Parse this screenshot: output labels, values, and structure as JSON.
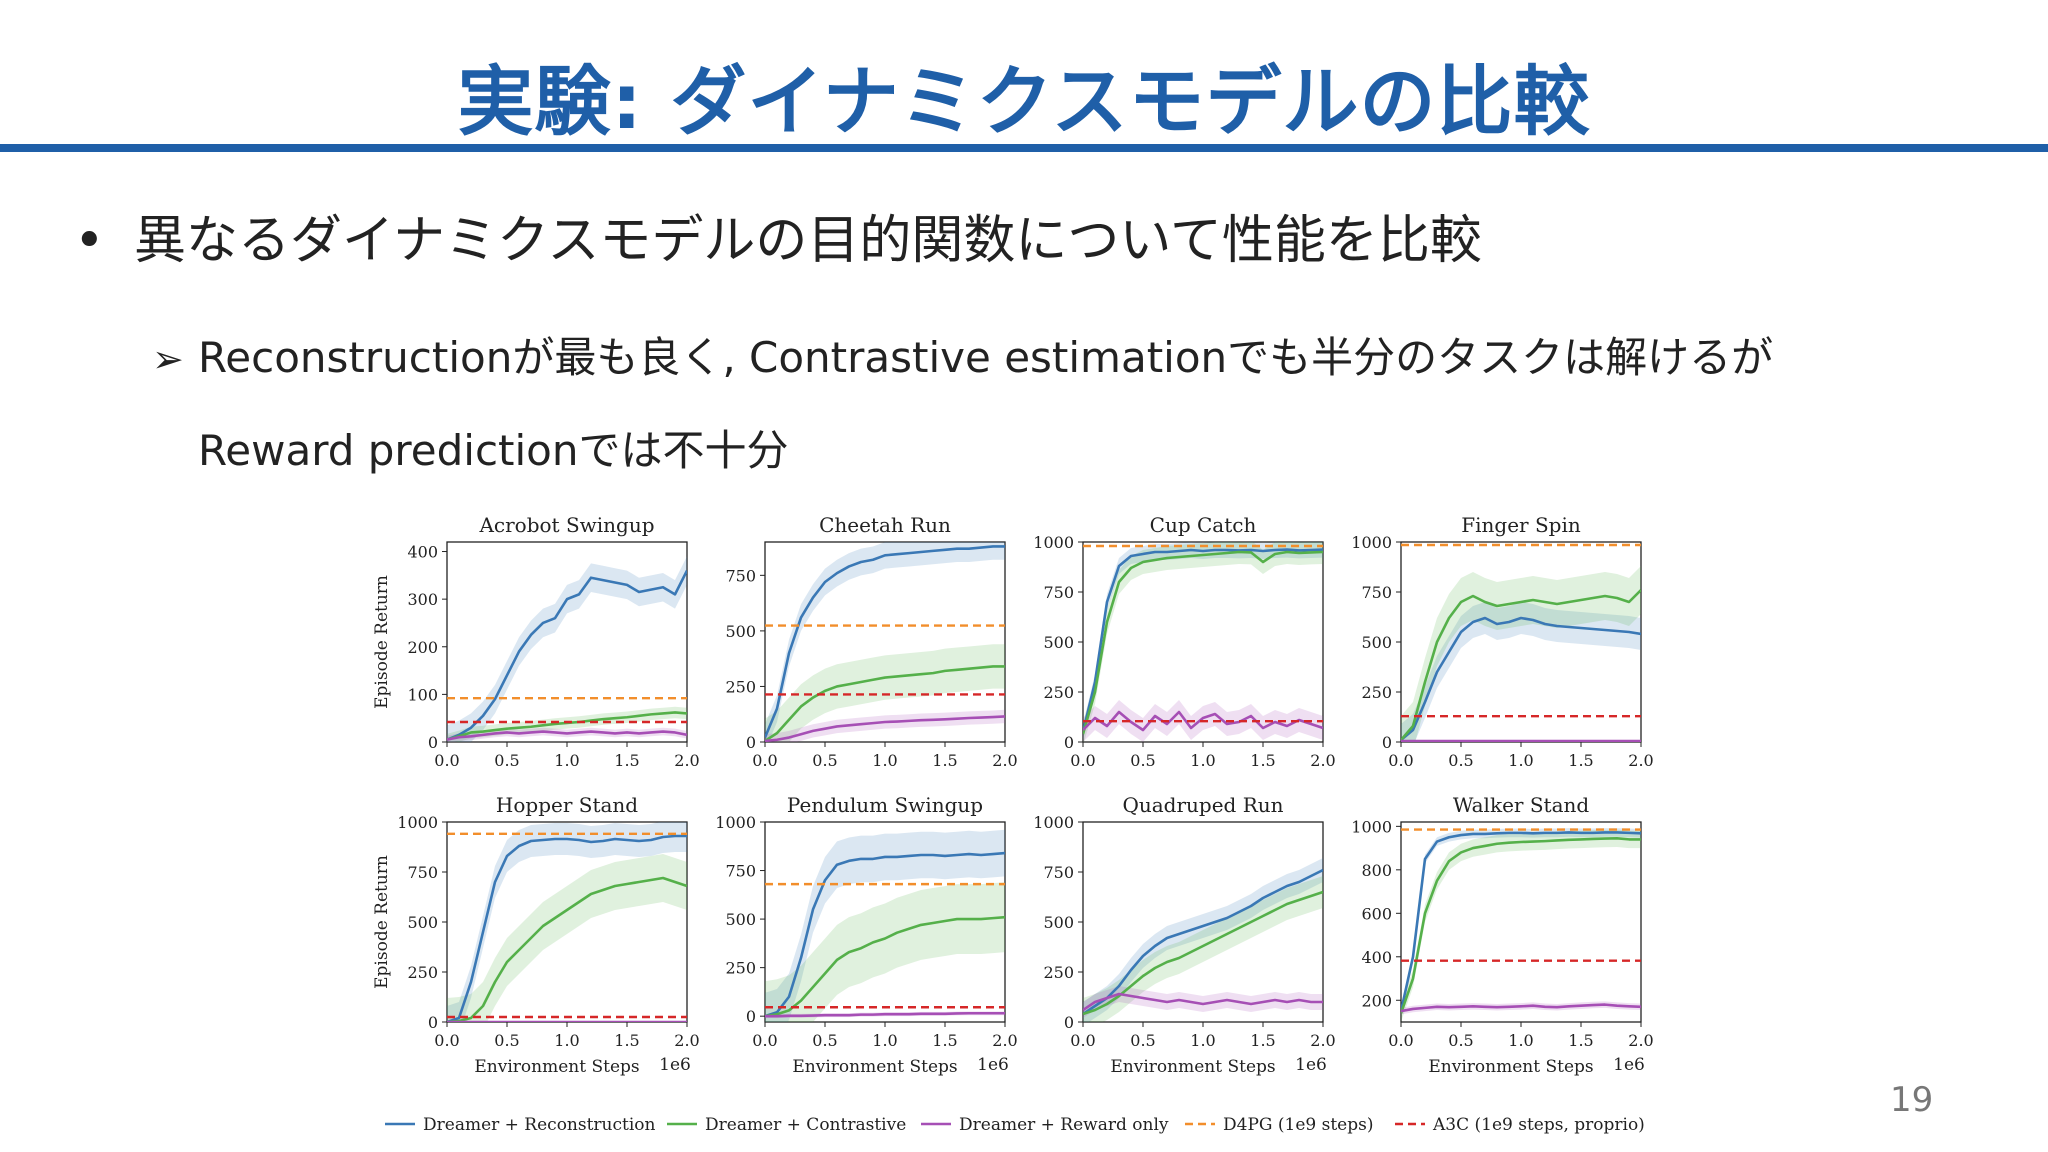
{
  "slide": {
    "title": "実験: ダイナミクスモデルの比較",
    "bullet": "•",
    "bullet1": "異なるダイナミクスモデルの目的関数について性能を比較",
    "arrow": "➢",
    "bullet2_line1": "Reconstructionが最も良く, Contrastive estimationでも半分のタスクは解けるが",
    "bullet2_line2": "Reward predictionでは不十分",
    "page_number": "19"
  },
  "colors": {
    "accent": "#1f5fa8",
    "reconstruction": "#3a78b5",
    "contrastive": "#55b04a",
    "reward": "#a64fb5",
    "d4pg": "#f28e2b",
    "a3c": "#d62728"
  },
  "chart_data": {
    "type": "line",
    "xlabel": "Environment Steps",
    "ylabel": "Episode Return",
    "x_multiplier": "1e6",
    "xlim": [
      0,
      2
    ],
    "x_ticks": [
      "0.0",
      "0.5",
      "1.0",
      "1.5",
      "2.0"
    ],
    "x": [
      0,
      0.1,
      0.2,
      0.3,
      0.4,
      0.5,
      0.6,
      0.7,
      0.8,
      0.9,
      1.0,
      1.1,
      1.2,
      1.3,
      1.4,
      1.5,
      1.6,
      1.7,
      1.8,
      1.9,
      2.0
    ],
    "legend": [
      {
        "key": "reconstruction",
        "label": "Dreamer + Reconstruction",
        "style": "solid"
      },
      {
        "key": "contrastive",
        "label": "Dreamer + Contrastive",
        "style": "solid"
      },
      {
        "key": "reward",
        "label": "Dreamer + Reward only",
        "style": "solid"
      },
      {
        "key": "d4pg",
        "label": "D4PG (1e9 steps)",
        "style": "dashed"
      },
      {
        "key": "a3c",
        "label": "A3C (1e9 steps, proprio)",
        "style": "dashed"
      }
    ],
    "panels": [
      {
        "title": "Acrobot Swingup",
        "ylim": [
          0,
          420
        ],
        "yticks": [
          0,
          100,
          200,
          300,
          400
        ],
        "series": [
          {
            "key": "reconstruction",
            "values": [
              5,
              15,
              30,
              55,
              90,
              140,
              190,
              225,
              250,
              260,
              300,
              310,
              345,
              340,
              335,
              330,
              315,
              320,
              325,
              310,
              360
            ],
            "band": 30
          },
          {
            "key": "contrastive",
            "values": [
              5,
              12,
              20,
              22,
              25,
              28,
              30,
              32,
              35,
              38,
              40,
              42,
              45,
              48,
              50,
              52,
              55,
              58,
              60,
              62,
              60
            ],
            "band": 12
          },
          {
            "key": "reward",
            "values": [
              5,
              10,
              12,
              15,
              18,
              20,
              18,
              20,
              22,
              20,
              18,
              20,
              22,
              20,
              18,
              20,
              18,
              20,
              22,
              20,
              15
            ],
            "band": 8
          }
        ],
        "d4pg": 92,
        "a3c": 42
      },
      {
        "title": "Cheetah Run",
        "ylim": [
          0,
          900
        ],
        "yticks": [
          0,
          250,
          500,
          750
        ],
        "series": [
          {
            "key": "reconstruction",
            "values": [
              20,
              150,
              400,
              560,
              650,
              720,
              760,
              790,
              810,
              820,
              840,
              845,
              850,
              855,
              860,
              865,
              870,
              870,
              875,
              880,
              880
            ],
            "band": 60
          },
          {
            "key": "contrastive",
            "values": [
              5,
              40,
              100,
              160,
              200,
              230,
              250,
              260,
              270,
              280,
              290,
              295,
              300,
              305,
              310,
              320,
              325,
              330,
              335,
              340,
              340
            ],
            "band": 100
          },
          {
            "key": "reward",
            "values": [
              5,
              10,
              20,
              35,
              50,
              60,
              70,
              75,
              80,
              85,
              90,
              92,
              95,
              98,
              100,
              102,
              105,
              108,
              110,
              112,
              115
            ],
            "band": 30
          }
        ],
        "d4pg": 524,
        "a3c": 214
      },
      {
        "title": "Cup Catch",
        "ylim": [
          0,
          1000
        ],
        "yticks": [
          0,
          250,
          500,
          750,
          1000
        ],
        "series": [
          {
            "key": "reconstruction",
            "values": [
              50,
              300,
              700,
              880,
              930,
              940,
              950,
              950,
              955,
              960,
              955,
              960,
              960,
              958,
              960,
              955,
              960,
              962,
              958,
              960,
              962
            ],
            "band": 40
          },
          {
            "key": "contrastive",
            "values": [
              40,
              250,
              600,
              800,
              870,
              900,
              910,
              920,
              925,
              930,
              935,
              940,
              945,
              950,
              948,
              900,
              940,
              950,
              945,
              948,
              950
            ],
            "band": 60
          },
          {
            "key": "reward",
            "values": [
              60,
              120,
              80,
              150,
              100,
              60,
              130,
              90,
              150,
              70,
              120,
              140,
              90,
              100,
              130,
              70,
              100,
              80,
              110,
              90,
              70
            ],
            "band": 60
          }
        ],
        "d4pg": 980,
        "a3c": 104
      },
      {
        "title": "Finger Spin",
        "ylim": [
          0,
          1000
        ],
        "yticks": [
          0,
          250,
          500,
          750,
          1000
        ],
        "series": [
          {
            "key": "reconstruction",
            "values": [
              10,
              60,
              200,
              350,
              450,
              550,
              600,
              620,
              590,
              600,
              620,
              610,
              590,
              580,
              575,
              570,
              565,
              560,
              555,
              550,
              540
            ],
            "band": 80
          },
          {
            "key": "contrastive",
            "values": [
              10,
              80,
              300,
              500,
              620,
              700,
              730,
              700,
              680,
              690,
              700,
              710,
              700,
              690,
              700,
              710,
              720,
              730,
              720,
              700,
              760
            ],
            "band": 120
          },
          {
            "key": "reward",
            "values": [
              5,
              5,
              5,
              5,
              5,
              5,
              5,
              5,
              5,
              5,
              5,
              5,
              5,
              5,
              5,
              5,
              5,
              5,
              5,
              5,
              5
            ],
            "band": 4
          }
        ],
        "d4pg": 985,
        "a3c": 129
      },
      {
        "title": "Hopper Stand",
        "ylim": [
          0,
          1000
        ],
        "yticks": [
          0,
          250,
          500,
          750,
          1000
        ],
        "series": [
          {
            "key": "reconstruction",
            "values": [
              0,
              20,
              200,
              450,
              700,
              830,
              880,
              905,
              910,
              915,
              915,
              910,
              900,
              905,
              915,
              910,
              905,
              910,
              925,
              930,
              930
            ],
            "band": 80
          },
          {
            "key": "contrastive",
            "values": [
              0,
              5,
              20,
              80,
              200,
              300,
              360,
              420,
              480,
              520,
              560,
              600,
              640,
              660,
              680,
              690,
              700,
              710,
              720,
              700,
              680
            ],
            "band": 120
          },
          {
            "key": "reward",
            "values": [
              0,
              0,
              0,
              0,
              0,
              0,
              0,
              0,
              0,
              0,
              0,
              0,
              0,
              0,
              0,
              0,
              0,
              0,
              0,
              0,
              0
            ],
            "band": 3
          }
        ],
        "d4pg": 941,
        "a3c": 25
      },
      {
        "title": "Pendulum Swingup",
        "ylim": [
          -30,
          1000
        ],
        "yticks": [
          0,
          250,
          500,
          750,
          1000
        ],
        "series": [
          {
            "key": "reconstruction",
            "values": [
              0,
              20,
              100,
              300,
              550,
              700,
              780,
              800,
              810,
              810,
              820,
              820,
              825,
              830,
              830,
              825,
              830,
              835,
              830,
              835,
              840
            ],
            "band": 120
          },
          {
            "key": "contrastive",
            "values": [
              0,
              10,
              30,
              80,
              150,
              220,
              290,
              330,
              350,
              380,
              400,
              430,
              450,
              470,
              480,
              490,
              500,
              500,
              500,
              505,
              510
            ],
            "band": 180
          },
          {
            "key": "reward",
            "values": [
              0,
              0,
              2,
              2,
              3,
              5,
              5,
              5,
              8,
              8,
              10,
              10,
              10,
              12,
              12,
              12,
              14,
              15,
              15,
              15,
              15
            ],
            "band": 10
          }
        ],
        "d4pg": 680,
        "a3c": 46
      },
      {
        "title": "Quadruped Run",
        "ylim": [
          0,
          1000
        ],
        "yticks": [
          0,
          250,
          500,
          750,
          1000
        ],
        "series": [
          {
            "key": "reconstruction",
            "values": [
              40,
              80,
              120,
              180,
              260,
              330,
              380,
              420,
              440,
              460,
              480,
              500,
              520,
              550,
              580,
              620,
              650,
              680,
              700,
              730,
              760
            ],
            "band": 60
          },
          {
            "key": "contrastive",
            "values": [
              40,
              60,
              90,
              130,
              180,
              230,
              270,
              300,
              320,
              350,
              380,
              410,
              440,
              470,
              500,
              530,
              560,
              590,
              610,
              630,
              650
            ],
            "band": 80
          },
          {
            "key": "reward",
            "values": [
              60,
              100,
              120,
              140,
              130,
              120,
              110,
              100,
              110,
              100,
              90,
              100,
              110,
              100,
              90,
              100,
              110,
              100,
              110,
              100,
              100
            ],
            "band": 40
          }
        ],
        "d4pg": null,
        "a3c": null
      },
      {
        "title": "Walker Stand",
        "ylim": [
          100,
          1020
        ],
        "yticks": [
          200,
          400,
          600,
          800,
          1000
        ],
        "series": [
          {
            "key": "reconstruction",
            "values": [
              150,
              400,
              850,
              930,
              950,
              960,
              965,
              965,
              968,
              970,
              970,
              968,
              970,
              970,
              972,
              970,
              970,
              972,
              972,
              970,
              968
            ],
            "band": 20
          },
          {
            "key": "contrastive",
            "values": [
              140,
              300,
              600,
              750,
              840,
              880,
              900,
              910,
              920,
              925,
              928,
              930,
              932,
              935,
              938,
              940,
              942,
              944,
              945,
              940,
              940
            ],
            "band": 40
          },
          {
            "key": "reward",
            "values": [
              150,
              160,
              165,
              170,
              168,
              170,
              172,
              170,
              168,
              170,
              172,
              175,
              170,
              168,
              172,
              175,
              178,
              180,
              175,
              172,
              170
            ],
            "band": 15
          }
        ],
        "d4pg": 985,
        "a3c": 382
      }
    ]
  }
}
